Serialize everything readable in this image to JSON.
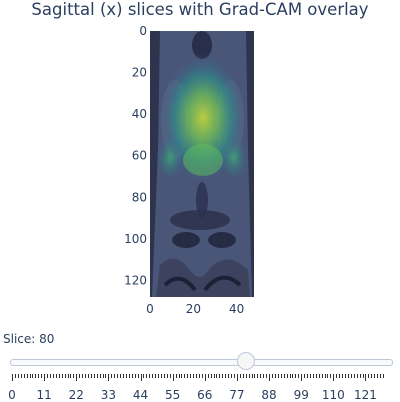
{
  "title": "Sagittal (x) slices with Grad-CAM overlay",
  "image": {
    "x_ticks": [
      "0",
      "20",
      "40"
    ],
    "x_tick_values": [
      0,
      20,
      40
    ],
    "y_ticks": [
      "0",
      "20",
      "40",
      "60",
      "80",
      "100",
      "120"
    ],
    "y_tick_values": [
      0,
      20,
      40,
      60,
      80,
      100,
      120
    ],
    "x_range": [
      0,
      48
    ],
    "y_range": [
      0,
      128
    ],
    "overlay_colormap": [
      "#440154",
      "#3b528b",
      "#21918c",
      "#5ec962",
      "#fde725"
    ]
  },
  "slider": {
    "label": "Slice: 80",
    "current": 80,
    "min": 0,
    "max": 127,
    "tick_labels": [
      "0",
      "11",
      "22",
      "33",
      "44",
      "55",
      "66",
      "77",
      "88",
      "99",
      "110",
      "121"
    ],
    "tick_values": [
      0,
      11,
      22,
      33,
      44,
      55,
      66,
      77,
      88,
      99,
      110,
      121
    ]
  }
}
